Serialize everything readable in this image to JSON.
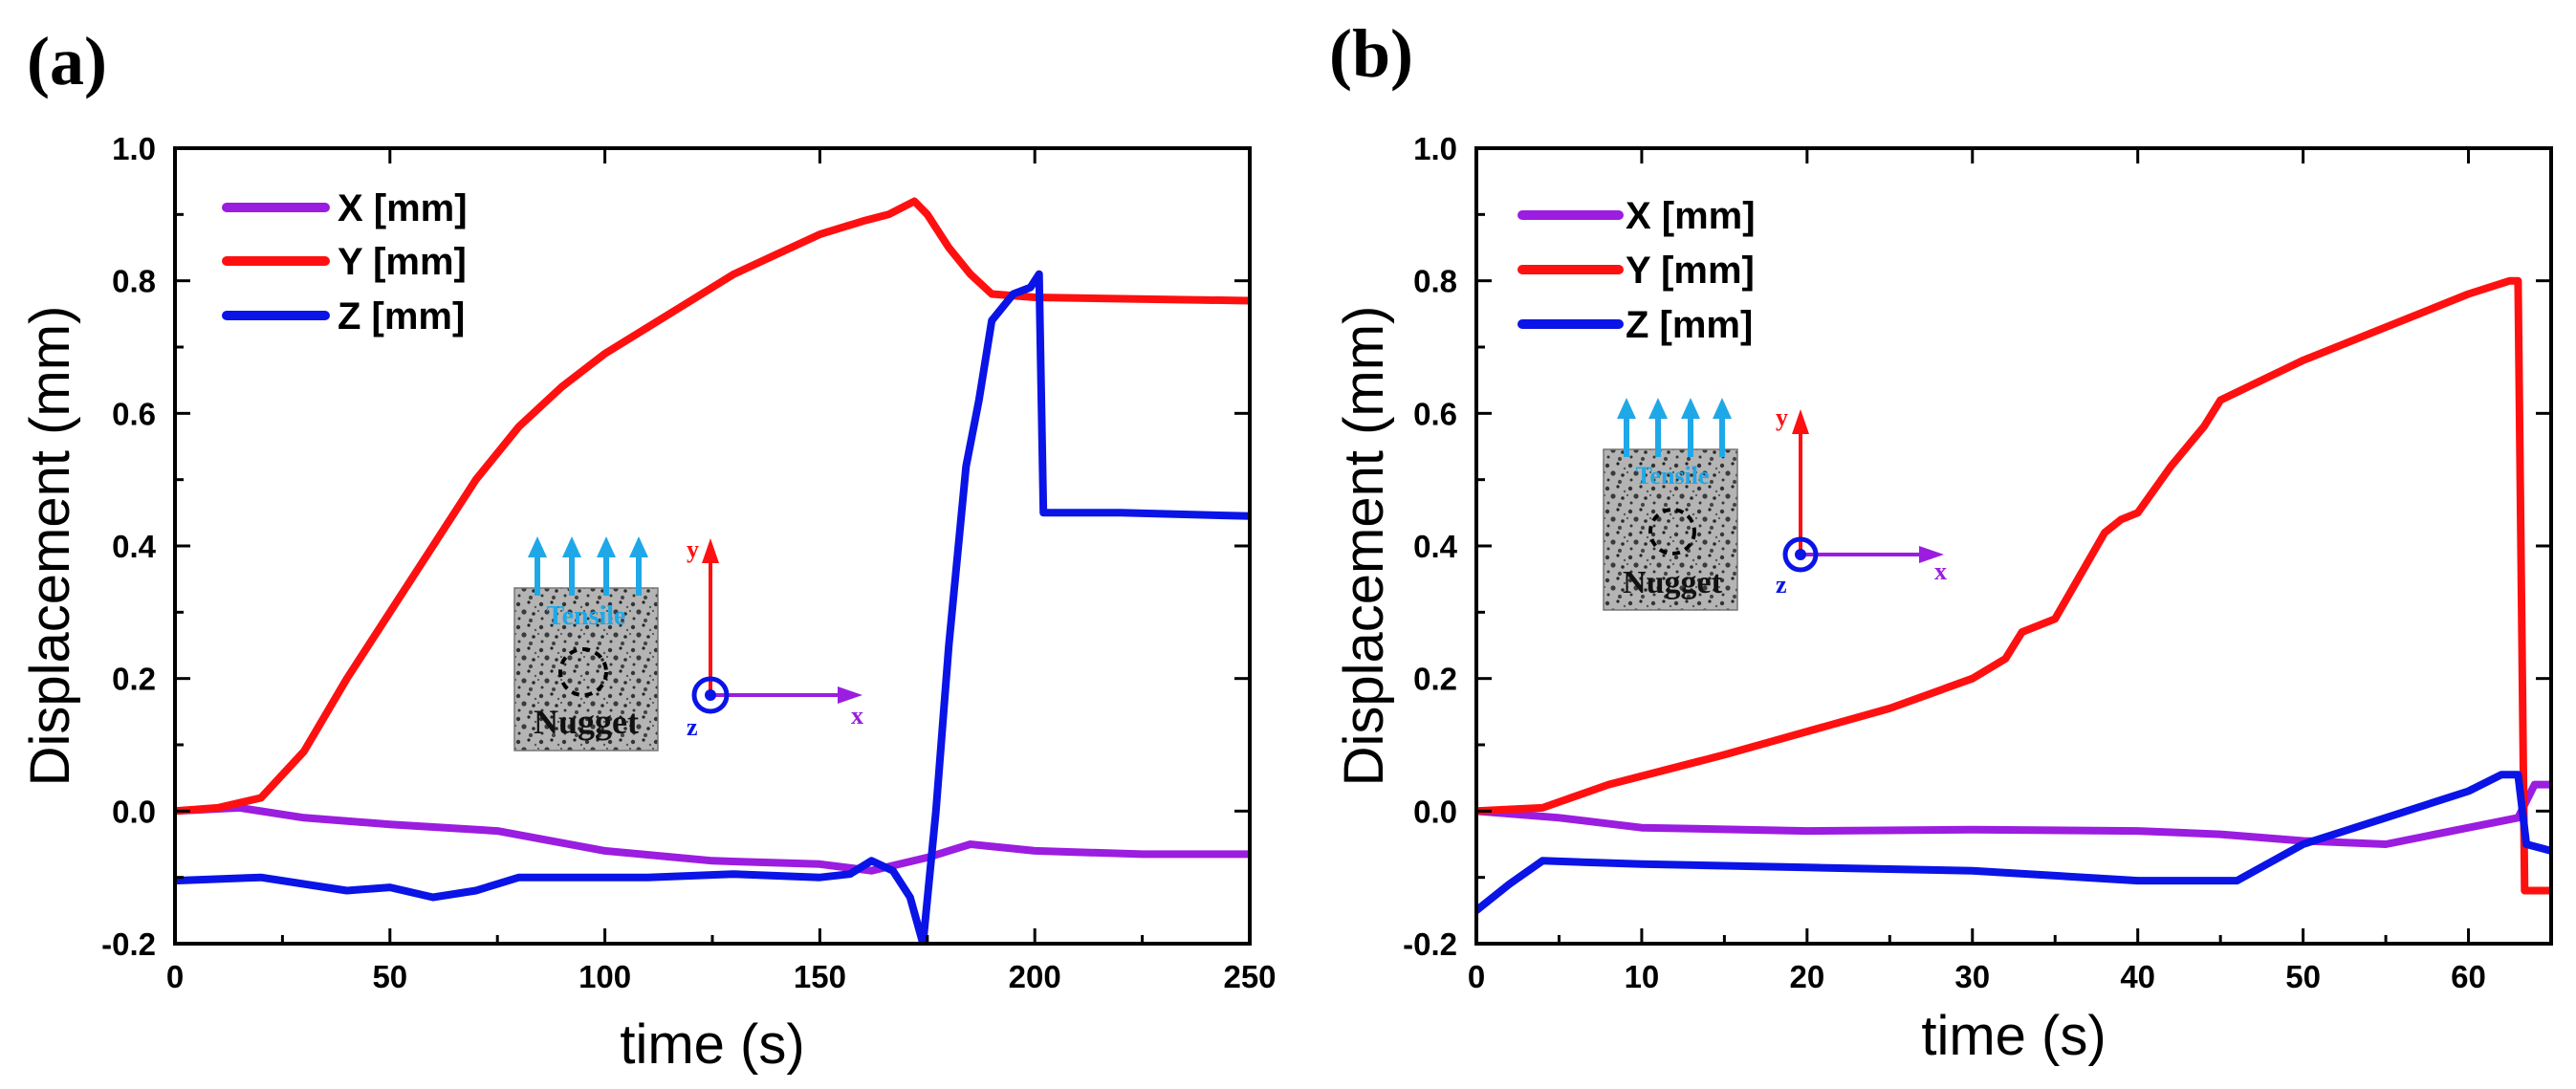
{
  "chart_data": [
    {
      "type": "line",
      "panel_label": "(a)",
      "xlabel": "time (s)",
      "ylabel": "Displacement (mm)",
      "xlim": [
        0,
        250
      ],
      "ylim": [
        -0.2,
        1.0
      ],
      "xticks": [
        0,
        50,
        100,
        150,
        200,
        250
      ],
      "xtick_labels": [
        "0",
        "50",
        "100",
        "150",
        "200",
        "250"
      ],
      "yticks": [
        -0.2,
        0.0,
        0.2,
        0.4,
        0.6,
        0.8,
        1.0
      ],
      "ytick_labels": [
        "-0.2",
        "0.0",
        "0.2",
        "0.4",
        "0.6",
        "0.8",
        "1.0"
      ],
      "legend_position": "top-left",
      "series": [
        {
          "name": "X [mm]",
          "color": "#9b1de0",
          "points": [
            [
              0,
              0.0
            ],
            [
              15,
              0.005
            ],
            [
              30,
              -0.01
            ],
            [
              50,
              -0.02
            ],
            [
              75,
              -0.03
            ],
            [
              100,
              -0.06
            ],
            [
              125,
              -0.075
            ],
            [
              150,
              -0.08
            ],
            [
              162,
              -0.09
            ],
            [
              175,
              -0.07
            ],
            [
              185,
              -0.05
            ],
            [
              200,
              -0.06
            ],
            [
              225,
              -0.065
            ],
            [
              250,
              -0.065
            ]
          ]
        },
        {
          "name": "Y [mm]",
          "color": "#ff1010",
          "points": [
            [
              0,
              0.0
            ],
            [
              10,
              0.005
            ],
            [
              20,
              0.02
            ],
            [
              30,
              0.09
            ],
            [
              40,
              0.2
            ],
            [
              50,
              0.3
            ],
            [
              60,
              0.4
            ],
            [
              70,
              0.5
            ],
            [
              80,
              0.58
            ],
            [
              90,
              0.64
            ],
            [
              100,
              0.69
            ],
            [
              110,
              0.73
            ],
            [
              120,
              0.77
            ],
            [
              130,
              0.81
            ],
            [
              140,
              0.84
            ],
            [
              150,
              0.87
            ],
            [
              160,
              0.89
            ],
            [
              166,
              0.9
            ],
            [
              172,
              0.92
            ],
            [
              175,
              0.9
            ],
            [
              180,
              0.85
            ],
            [
              185,
              0.81
            ],
            [
              190,
              0.78
            ],
            [
              200,
              0.775
            ],
            [
              250,
              0.77
            ]
          ]
        },
        {
          "name": "Z [mm]",
          "color": "#0a14e6",
          "points": [
            [
              0,
              -0.105
            ],
            [
              20,
              -0.1
            ],
            [
              40,
              -0.12
            ],
            [
              50,
              -0.115
            ],
            [
              60,
              -0.13
            ],
            [
              70,
              -0.12
            ],
            [
              80,
              -0.1
            ],
            [
              90,
              -0.1
            ],
            [
              110,
              -0.1
            ],
            [
              130,
              -0.095
            ],
            [
              150,
              -0.1
            ],
            [
              157,
              -0.095
            ],
            [
              162,
              -0.075
            ],
            [
              167,
              -0.09
            ],
            [
              171,
              -0.13
            ],
            [
              174,
              -0.2
            ],
            [
              177,
              0.0
            ],
            [
              180,
              0.25
            ],
            [
              184,
              0.52
            ],
            [
              187,
              0.62
            ],
            [
              190,
              0.74
            ],
            [
              195,
              0.78
            ],
            [
              199,
              0.79
            ],
            [
              201,
              0.81
            ],
            [
              202,
              0.45
            ],
            [
              220,
              0.45
            ],
            [
              250,
              0.445
            ]
          ]
        }
      ],
      "inset": {
        "arrow_label": "Tensile",
        "sample_label": "Nugget",
        "axis_labels": {
          "x": "x",
          "y": "y",
          "z": "z"
        }
      }
    },
    {
      "type": "line",
      "panel_label": "(b)",
      "xlabel": "time (s)",
      "ylabel": "Displacement (mm)",
      "xlim": [
        0,
        65
      ],
      "ylim": [
        -0.2,
        1.0
      ],
      "xticks": [
        0,
        10,
        20,
        30,
        40,
        50,
        60
      ],
      "xtick_labels": [
        "0",
        "10",
        "20",
        "30",
        "40",
        "50",
        "60"
      ],
      "yticks": [
        -0.2,
        0.0,
        0.2,
        0.4,
        0.6,
        0.8,
        1.0
      ],
      "ytick_labels": [
        "-0.2",
        "0.0",
        "0.2",
        "0.4",
        "0.6",
        "0.8",
        "1.0"
      ],
      "legend_position": "top-left",
      "series": [
        {
          "name": "X [mm]",
          "color": "#9b1de0",
          "points": [
            [
              0,
              0.0
            ],
            [
              5,
              -0.01
            ],
            [
              10,
              -0.025
            ],
            [
              20,
              -0.03
            ],
            [
              30,
              -0.028
            ],
            [
              40,
              -0.03
            ],
            [
              45,
              -0.035
            ],
            [
              50,
              -0.045
            ],
            [
              55,
              -0.05
            ],
            [
              60,
              -0.025
            ],
            [
              63,
              -0.01
            ],
            [
              64,
              0.04
            ],
            [
              65,
              0.04
            ]
          ]
        },
        {
          "name": "Y [mm]",
          "color": "#ff1010",
          "points": [
            [
              0,
              0.0
            ],
            [
              4,
              0.005
            ],
            [
              8,
              0.04
            ],
            [
              15,
              0.085
            ],
            [
              20,
              0.12
            ],
            [
              25,
              0.155
            ],
            [
              30,
              0.2
            ],
            [
              31,
              0.215
            ],
            [
              32,
              0.23
            ],
            [
              33,
              0.27
            ],
            [
              35,
              0.29
            ],
            [
              38,
              0.42
            ],
            [
              39,
              0.44
            ],
            [
              40,
              0.45
            ],
            [
              42,
              0.52
            ],
            [
              44,
              0.58
            ],
            [
              45,
              0.62
            ],
            [
              50,
              0.68
            ],
            [
              55,
              0.73
            ],
            [
              60,
              0.78
            ],
            [
              62.5,
              0.8
            ],
            [
              63,
              0.8
            ],
            [
              63.4,
              -0.12
            ],
            [
              65,
              -0.12
            ]
          ]
        },
        {
          "name": "Z [mm]",
          "color": "#0a14e6",
          "points": [
            [
              0,
              -0.15
            ],
            [
              2,
              -0.11
            ],
            [
              4,
              -0.075
            ],
            [
              10,
              -0.08
            ],
            [
              20,
              -0.085
            ],
            [
              30,
              -0.09
            ],
            [
              40,
              -0.105
            ],
            [
              46,
              -0.105
            ],
            [
              50,
              -0.05
            ],
            [
              55,
              -0.01
            ],
            [
              60,
              0.03
            ],
            [
              62,
              0.055
            ],
            [
              63,
              0.055
            ],
            [
              63.5,
              -0.05
            ],
            [
              65,
              -0.06
            ]
          ]
        }
      ],
      "inset": {
        "arrow_label": "Tensile",
        "sample_label": "Nugget",
        "axis_labels": {
          "x": "x",
          "y": "y",
          "z": "z"
        }
      }
    }
  ]
}
